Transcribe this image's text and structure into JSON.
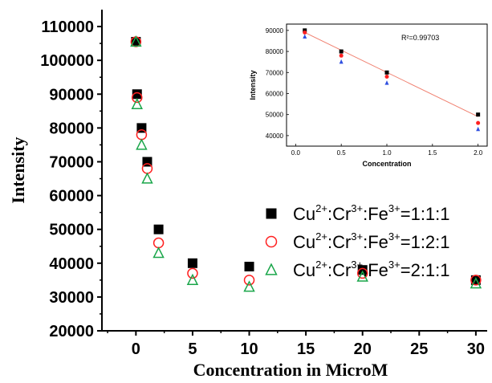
{
  "chart_data": [
    {
      "type": "scatter",
      "xlabel": "Concentration in  MicroM",
      "ylabel": "Intensity",
      "xlim": [
        -3,
        31
      ],
      "ylim": [
        20000,
        115000
      ],
      "x_ticks": [
        0,
        5,
        10,
        15,
        20,
        25,
        30
      ],
      "y_ticks": [
        20000,
        30000,
        40000,
        50000,
        60000,
        70000,
        80000,
        90000,
        100000,
        110000
      ],
      "legend_position": "center-right",
      "series": [
        {
          "name": "Cu2+:Cr3+:Fe3+=1:1:1",
          "legend_parts": [
            "Cu",
            "2+",
            ":Cr",
            "3+",
            ":Fe",
            "3+",
            "=1:1:1"
          ],
          "marker": "filled-square",
          "color": "#000000",
          "points": [
            [
              0,
              105500
            ],
            [
              0.1,
              90000
            ],
            [
              0.5,
              80000
            ],
            [
              1,
              70000
            ],
            [
              2,
              50000
            ],
            [
              5,
              40000
            ],
            [
              10,
              39000
            ],
            [
              20,
              38000
            ],
            [
              30,
              35000
            ]
          ]
        },
        {
          "name": "Cu2+:Cr3+:Fe3+=1:2:1",
          "legend_parts": [
            "Cu",
            "2+",
            ":Cr",
            "3+",
            ":Fe",
            "3+",
            "=1:2:1"
          ],
          "marker": "open-circle",
          "color": "#ff2020",
          "points": [
            [
              0,
              105500
            ],
            [
              0.1,
              89000
            ],
            [
              0.5,
              78000
            ],
            [
              1,
              68000
            ],
            [
              2,
              46000
            ],
            [
              5,
              37000
            ],
            [
              10,
              35000
            ],
            [
              20,
              37000
            ],
            [
              30,
              35000
            ]
          ]
        },
        {
          "name": "Cu2+:Cr3+:Fe3+=2:1:1",
          "legend_parts": [
            "Cu",
            "2+",
            ":Cr",
            "3+",
            ":Fe",
            "3+",
            "=2:1:1"
          ],
          "marker": "open-triangle",
          "color": "#1aa64a",
          "points": [
            [
              0,
              105500
            ],
            [
              0.1,
              87000
            ],
            [
              0.5,
              75000
            ],
            [
              1,
              65000
            ],
            [
              2,
              43000
            ],
            [
              5,
              35000
            ],
            [
              10,
              33000
            ],
            [
              20,
              36000
            ],
            [
              30,
              34000
            ]
          ]
        }
      ]
    },
    {
      "type": "scatter",
      "xlabel": "Concentration",
      "ylabel": "Intensity",
      "xlim": [
        -0.1,
        2.1
      ],
      "ylim": [
        35000,
        93000
      ],
      "x_ticks": [
        0.0,
        0.5,
        1.0,
        1.5,
        2.0
      ],
      "x_tick_labels": [
        "0.0",
        "0.5",
        "1.0",
        "1.5",
        "2.0"
      ],
      "y_ticks": [
        40000,
        50000,
        60000,
        70000,
        80000,
        90000
      ],
      "annotation": "R²=0.99703",
      "fit_line": {
        "color": "#f08070",
        "points": [
          [
            0.1,
            89000
          ],
          [
            2.0,
            49000
          ]
        ]
      },
      "series": [
        {
          "marker": "filled-square",
          "color": "#000000",
          "points": [
            [
              0.1,
              90000
            ],
            [
              0.5,
              80000
            ],
            [
              1.0,
              70000
            ],
            [
              2.0,
              50000
            ]
          ]
        },
        {
          "marker": "filled-circle",
          "color": "#ff2020",
          "points": [
            [
              0.1,
              89000
            ],
            [
              0.5,
              78000
            ],
            [
              1.0,
              68000
            ],
            [
              2.0,
              46000
            ]
          ]
        },
        {
          "marker": "filled-triangle",
          "color": "#3050e0",
          "points": [
            [
              0.1,
              87000
            ],
            [
              0.5,
              75000
            ],
            [
              1.0,
              65000
            ],
            [
              2.0,
              43000
            ]
          ]
        }
      ]
    }
  ]
}
